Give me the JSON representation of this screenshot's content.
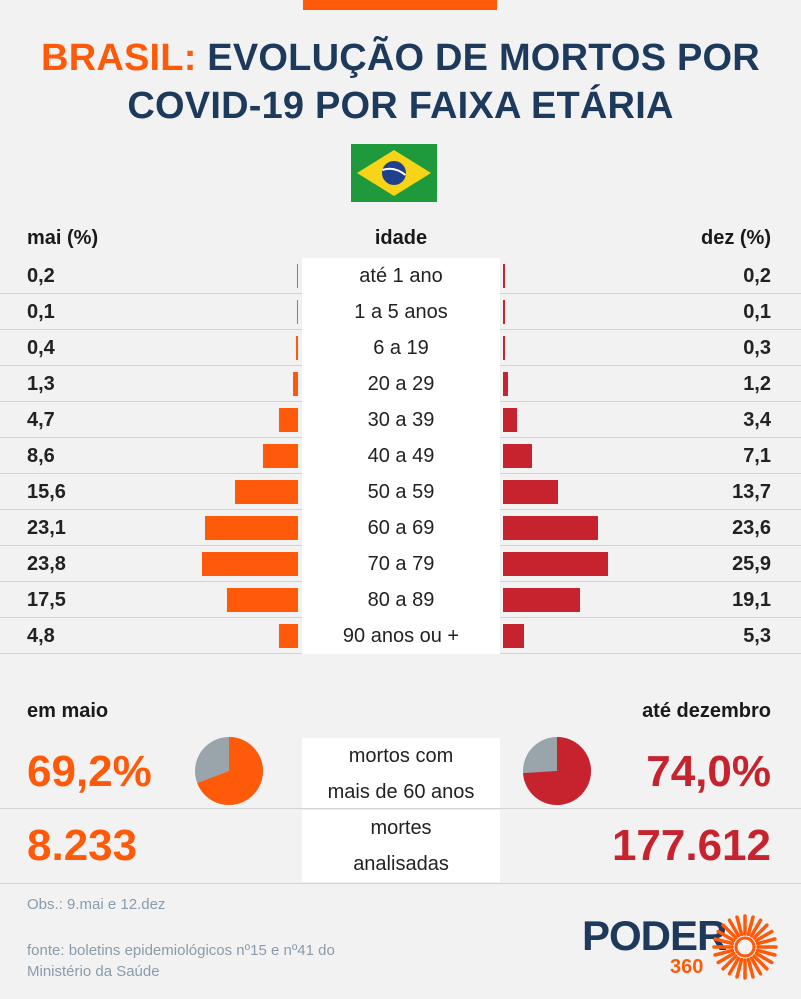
{
  "header": {
    "title_accent": "BRASIL:",
    "title_rest": " EVOLUÇÃO DE MORTOS POR",
    "title_line2": "COVID-19 POR FAIXA ETÁRIA",
    "flag_icon": "brazil-flag-icon"
  },
  "columns": {
    "left": "mai (%)",
    "middle": "idade",
    "right": "dez (%)"
  },
  "colors": {
    "may": "#fe5a0a",
    "dec": "#c7232f",
    "title": "#1d3a5c",
    "pie_rest": "#9aa5ab"
  },
  "chart_data": {
    "type": "bar",
    "orientation": "horizontal-butterfly",
    "categories": [
      "até 1 ano",
      "1 a 5 anos",
      "6 a 19",
      "20 a 29",
      "30 a 39",
      "40 a 49",
      "50 a 59",
      "60 a 69",
      "70 a 79",
      "80 a 89",
      "90 anos ou +"
    ],
    "series": [
      {
        "name": "mai (%)",
        "values": [
          0.2,
          0.1,
          0.4,
          1.3,
          4.7,
          8.6,
          15.6,
          23.1,
          23.8,
          17.5,
          4.8
        ],
        "labels": [
          "0,2",
          "0,1",
          "0,4",
          "1,3",
          "4,7",
          "8,6",
          "15,6",
          "23,1",
          "23,8",
          "17,5",
          "4,8"
        ]
      },
      {
        "name": "dez (%)",
        "values": [
          0.2,
          0.1,
          0.3,
          1.2,
          3.4,
          7.1,
          13.7,
          23.6,
          25.9,
          19.1,
          5.3
        ],
        "labels": [
          "0,2",
          "0,1",
          "0,3",
          "1,2",
          "3,4",
          "7,1",
          "13,7",
          "23,6",
          "25,9",
          "19,1",
          "5,3"
        ]
      }
    ],
    "xlim": [
      0,
      26
    ]
  },
  "summary": {
    "left_label": "em maio",
    "right_label": "até dezembro",
    "over60_label_1": "mortos com",
    "over60_label_2": "mais de 60 anos",
    "over60_may": "69,2%",
    "over60_may_value": 69.2,
    "over60_dec": "74,0%",
    "over60_dec_value": 74.0,
    "deaths_label_1": "mortes",
    "deaths_label_2": "analisadas",
    "deaths_may": "8.233",
    "deaths_dec": "177.612"
  },
  "footer": {
    "obs": "Obs.: 9.mai e 12.dez",
    "source_1": "fonte: boletins epidemiológicos nº15 e nº41  do",
    "source_2": "Ministério da Saúde",
    "logo_text": "PODER",
    "logo_number": "360"
  }
}
